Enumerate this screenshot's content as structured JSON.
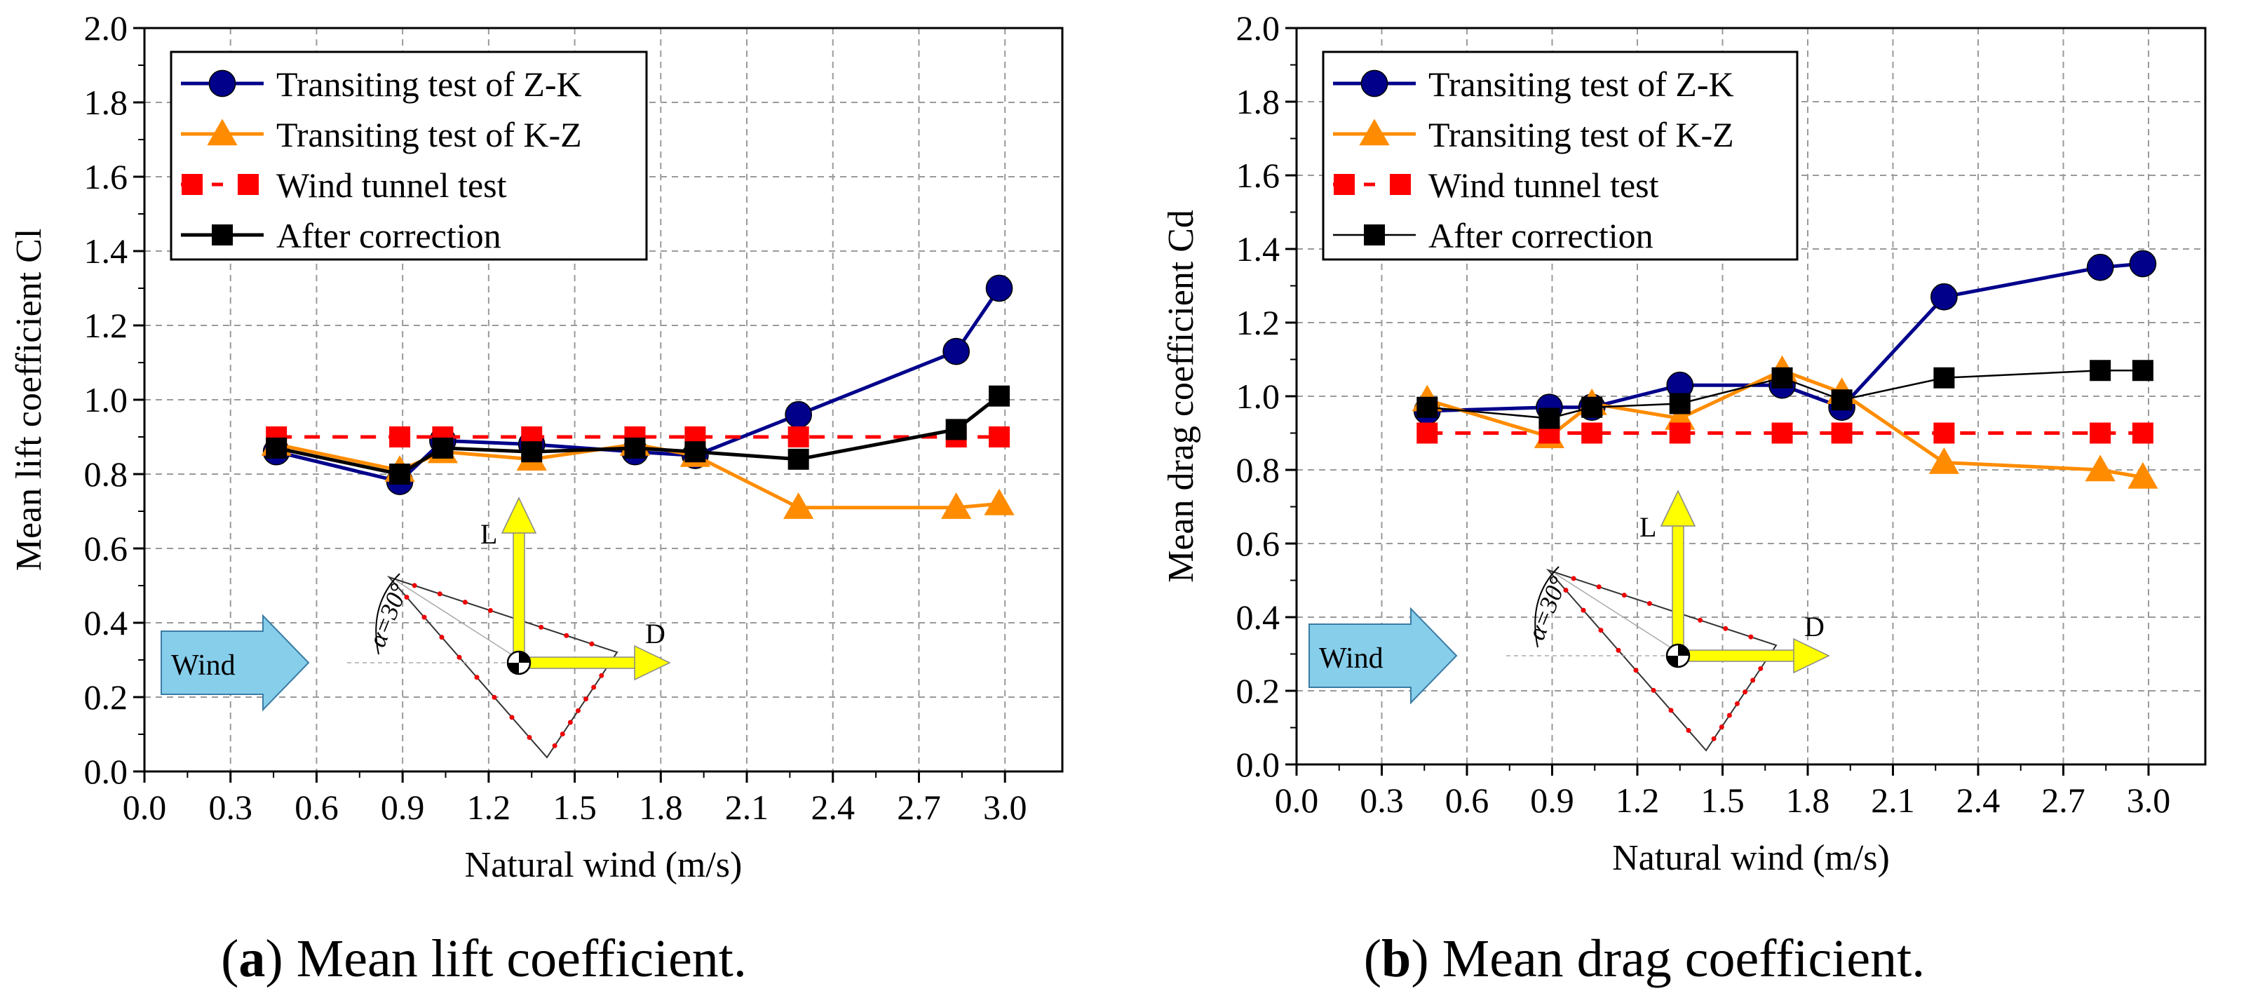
{
  "captions": [
    {
      "letter": "a",
      "text": " Mean lift coefficient."
    },
    {
      "letter": "b",
      "text": " Mean drag coefficient."
    }
  ],
  "colors": {
    "z_k": "#00008b",
    "k_z": "#ff8c00",
    "wind_tunnel": "#ff0000",
    "after_correction": "#000000",
    "wind_arrow": "#87ceeb",
    "force_arrow": "#ffff00"
  },
  "diagram": {
    "wind_label": "Wind",
    "lift_label": "L",
    "drag_label": "D",
    "angle_label": "α=30°"
  },
  "chart_data": [
    {
      "type": "line",
      "title": "",
      "xlabel": "Natural wind (m/s)",
      "ylabel": "Mean lift coefficient Cl",
      "xlim": [
        0,
        3.2
      ],
      "ylim": [
        0,
        2.0
      ],
      "xticks": [
        0.0,
        0.3,
        0.6,
        0.9,
        1.2,
        1.5,
        1.8,
        2.1,
        2.4,
        2.7,
        3.0
      ],
      "xtick_labels": [
        "0.0",
        "0.3",
        "0.6",
        "0.9",
        "1.2",
        "1.5",
        "1.8",
        "2.1",
        "2.4",
        "2.7",
        "3.0"
      ],
      "yticks": [
        0.0,
        0.2,
        0.4,
        0.6,
        0.8,
        1.0,
        1.2,
        1.4,
        1.6,
        1.8,
        2.0
      ],
      "ytick_labels": [
        "0.0",
        "0.2",
        "0.4",
        "0.6",
        "0.8",
        "1.0",
        "1.2",
        "1.4",
        "1.6",
        "1.8",
        "2.0"
      ],
      "grid": true,
      "legend_position": "top-left",
      "series": [
        {
          "name": "Transiting test of Z-K",
          "marker": "circle",
          "color": "#00008b",
          "x": [
            0.46,
            0.89,
            1.04,
            1.35,
            1.71,
            1.92,
            2.28,
            2.83,
            2.98
          ],
          "y": [
            0.86,
            0.78,
            0.89,
            0.88,
            0.86,
            0.85,
            0.96,
            1.13,
            1.3
          ]
        },
        {
          "name": "Transiting test of K-Z",
          "marker": "triangle",
          "color": "#ff8c00",
          "x": [
            0.46,
            0.89,
            1.04,
            1.35,
            1.71,
            1.92,
            2.28,
            2.83,
            2.98
          ],
          "y": [
            0.88,
            0.81,
            0.86,
            0.84,
            0.88,
            0.85,
            0.71,
            0.71,
            0.72
          ]
        },
        {
          "name": "Wind tunnel test",
          "marker": "square",
          "color": "#ff0000",
          "dashed": true,
          "x": [
            0.46,
            0.89,
            1.04,
            1.35,
            1.71,
            1.92,
            2.28,
            2.83,
            2.98
          ],
          "y": [
            0.9,
            0.9,
            0.9,
            0.9,
            0.9,
            0.9,
            0.9,
            0.9,
            0.9
          ]
        },
        {
          "name": "After correction",
          "marker": "square",
          "color": "#000000",
          "x": [
            0.46,
            0.89,
            1.04,
            1.35,
            1.71,
            1.92,
            2.28,
            2.83,
            2.98
          ],
          "y": [
            0.87,
            0.8,
            0.87,
            0.86,
            0.87,
            0.86,
            0.84,
            0.92,
            1.01
          ]
        }
      ]
    },
    {
      "type": "line",
      "title": "",
      "xlabel": "Natural wind (m/s)",
      "ylabel": "Mean drag coefficient Cd",
      "xlim": [
        0,
        3.2
      ],
      "ylim": [
        0,
        2.0
      ],
      "xticks": [
        0.0,
        0.3,
        0.6,
        0.9,
        1.2,
        1.5,
        1.8,
        2.1,
        2.4,
        2.7,
        3.0
      ],
      "xtick_labels": [
        "0.0",
        "0.3",
        "0.6",
        "0.9",
        "1.2",
        "1.5",
        "1.8",
        "2.1",
        "2.4",
        "2.7",
        "3.0"
      ],
      "yticks": [
        0.0,
        0.2,
        0.4,
        0.6,
        0.8,
        1.0,
        1.2,
        1.4,
        1.6,
        1.8,
        2.0
      ],
      "ytick_labels": [
        "0.0",
        "0.2",
        "0.4",
        "0.6",
        "0.8",
        "1.0",
        "1.2",
        "1.4",
        "1.6",
        "1.8",
        "2.0"
      ],
      "grid": true,
      "legend_position": "top-left",
      "series": [
        {
          "name": "Transiting test of Z-K",
          "marker": "circle",
          "color": "#00008b",
          "x": [
            0.46,
            0.89,
            1.04,
            1.35,
            1.71,
            1.92,
            2.28,
            2.83,
            2.98
          ],
          "y": [
            0.96,
            0.97,
            0.97,
            1.03,
            1.03,
            0.97,
            1.27,
            1.35,
            1.36
          ]
        },
        {
          "name": "Transiting test of K-Z",
          "marker": "triangle",
          "color": "#ff8c00",
          "x": [
            0.46,
            0.89,
            1.04,
            1.35,
            1.71,
            1.92,
            2.28,
            2.83,
            2.98
          ],
          "y": [
            0.99,
            0.89,
            0.98,
            0.94,
            1.07,
            1.01,
            0.82,
            0.8,
            0.78
          ]
        },
        {
          "name": "Wind tunnel test",
          "marker": "square",
          "color": "#ff0000",
          "dashed": true,
          "x": [
            0.46,
            0.89,
            1.04,
            1.35,
            1.71,
            1.92,
            2.28,
            2.83,
            2.98
          ],
          "y": [
            0.9,
            0.9,
            0.9,
            0.9,
            0.9,
            0.9,
            0.9,
            0.9,
            0.9
          ]
        },
        {
          "name": "After correction",
          "marker": "square",
          "color": "#000000",
          "x": [
            0.46,
            0.89,
            1.04,
            1.35,
            1.71,
            1.92,
            2.28,
            2.83,
            2.98
          ],
          "y": [
            0.97,
            0.94,
            0.97,
            0.98,
            1.05,
            0.99,
            1.05,
            1.07,
            1.07
          ]
        }
      ]
    }
  ]
}
